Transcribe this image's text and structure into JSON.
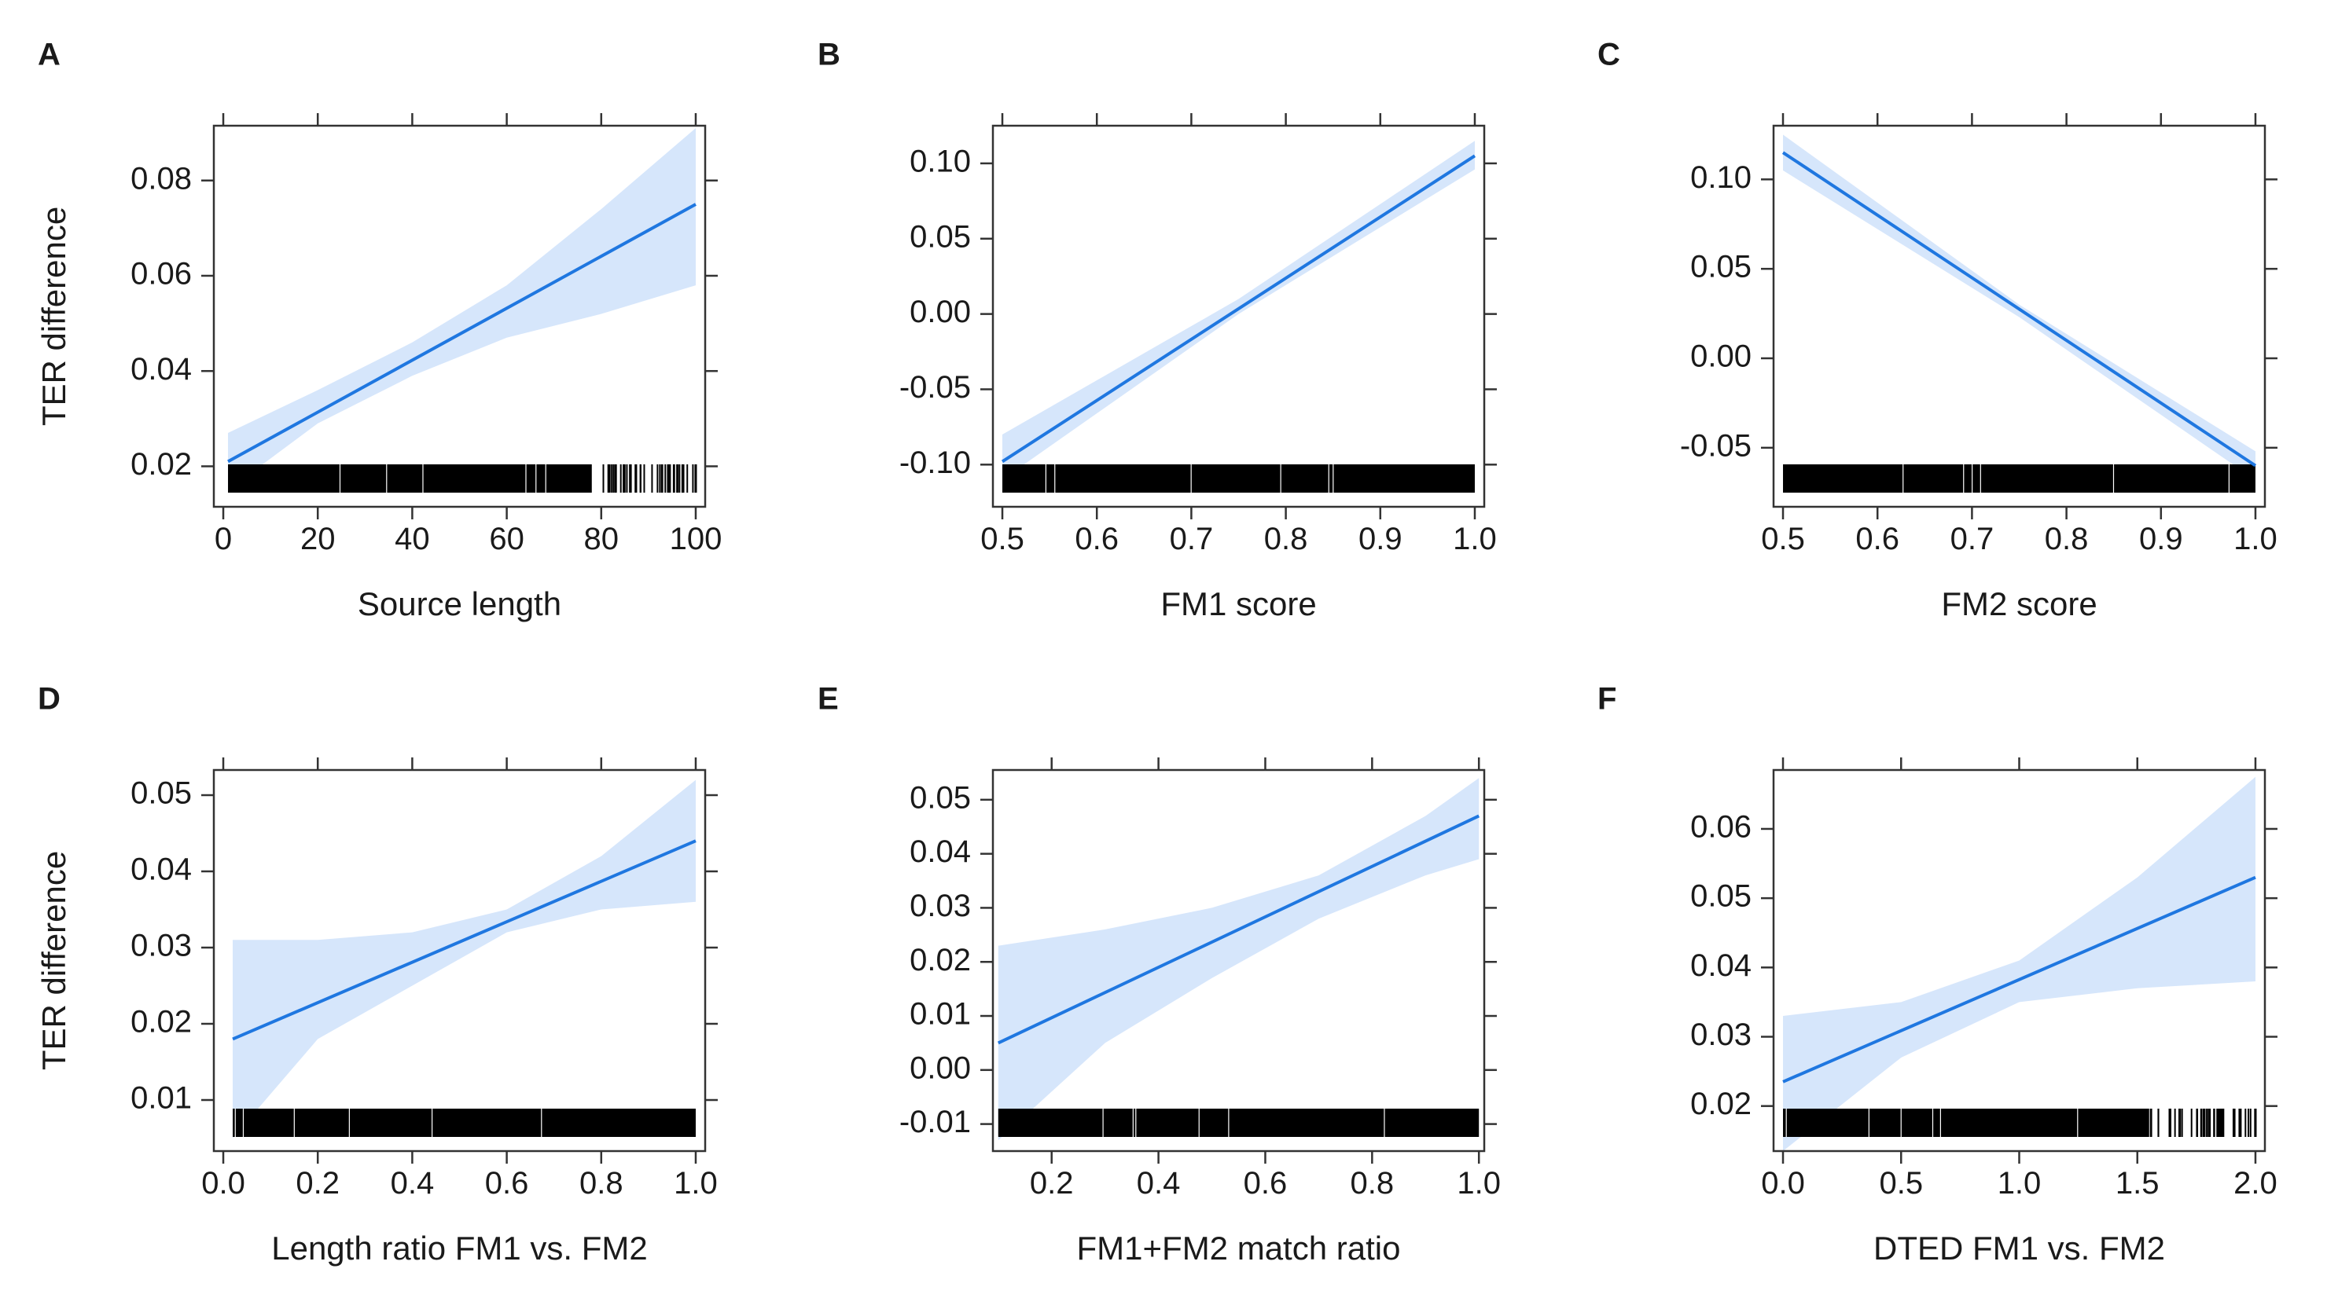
{
  "figure": {
    "colors": {
      "line": "#1f77e0",
      "band": "#d6e6fb",
      "rug": "#000000",
      "frame": "#333333"
    }
  },
  "chart_data": [
    {
      "panel": "A",
      "type": "line",
      "xlabel": "Source length",
      "ylabel": "TER difference",
      "xlim": [
        -2,
        102
      ],
      "ylim": [
        0.0115,
        0.0915
      ],
      "xticks": [
        0,
        20,
        40,
        60,
        80,
        100
      ],
      "xtick_labels": [
        "0",
        "20",
        "40",
        "60",
        "80",
        "100"
      ],
      "yticks": [
        0.02,
        0.04,
        0.06,
        0.08
      ],
      "ytick_labels": [
        "0.02",
        "0.04",
        "0.06",
        "0.08"
      ],
      "series": [
        {
          "x": [
            1,
            100
          ],
          "y": [
            0.021,
            0.075
          ]
        }
      ],
      "band": {
        "x": [
          1,
          20,
          40,
          60,
          80,
          100
        ],
        "lower": [
          0.015,
          0.029,
          0.039,
          0.047,
          0.052,
          0.058
        ],
        "upper": [
          0.027,
          0.036,
          0.046,
          0.058,
          0.074,
          0.091
        ]
      },
      "rug": {
        "from": 1,
        "to": 100,
        "dense_to": 78
      }
    },
    {
      "panel": "B",
      "type": "line",
      "xlabel": "FM1 score",
      "ylabel": "",
      "xlim": [
        0.49,
        1.01
      ],
      "ylim": [
        -0.128,
        0.125
      ],
      "xticks": [
        0.5,
        0.6,
        0.7,
        0.8,
        0.9,
        1.0
      ],
      "xtick_labels": [
        "0.5",
        "0.6",
        "0.7",
        "0.8",
        "0.9",
        "1.0"
      ],
      "yticks": [
        -0.1,
        -0.05,
        0.0,
        0.05,
        0.1
      ],
      "ytick_labels": [
        "-0.10",
        "-0.05",
        "0.00",
        "0.05",
        "0.10"
      ],
      "series": [
        {
          "x": [
            0.5,
            1.0
          ],
          "y": [
            -0.098,
            0.105
          ]
        }
      ],
      "band": {
        "x": [
          0.5,
          0.75,
          1.0
        ],
        "lower": [
          -0.11,
          0.0,
          0.096
        ],
        "upper": [
          -0.08,
          0.01,
          0.115
        ]
      },
      "rug": {
        "from": 0.5,
        "to": 1.0,
        "dense_to": 1.0
      }
    },
    {
      "panel": "C",
      "type": "line",
      "xlabel": "FM2 score",
      "ylabel": "",
      "xlim": [
        0.49,
        1.01
      ],
      "ylim": [
        -0.083,
        0.13
      ],
      "xticks": [
        0.5,
        0.6,
        0.7,
        0.8,
        0.9,
        1.0
      ],
      "xtick_labels": [
        "0.5",
        "0.6",
        "0.7",
        "0.8",
        "0.9",
        "1.0"
      ],
      "yticks": [
        -0.05,
        0.0,
        0.05,
        0.1
      ],
      "ytick_labels": [
        "-0.05",
        "0.00",
        "0.05",
        "0.10"
      ],
      "series": [
        {
          "x": [
            0.5,
            1.0
          ],
          "y": [
            0.115,
            -0.06
          ]
        }
      ],
      "band": {
        "x": [
          0.5,
          0.75,
          1.0
        ],
        "lower": [
          0.105,
          0.023,
          -0.068
        ],
        "upper": [
          0.125,
          0.03,
          -0.052
        ]
      },
      "rug": {
        "from": 0.5,
        "to": 1.0,
        "dense_to": 1.0
      }
    },
    {
      "panel": "D",
      "type": "line",
      "xlabel": "Length ratio FM1 vs. FM2",
      "ylabel": "TER difference",
      "xlim": [
        -0.02,
        1.02
      ],
      "ylim": [
        0.0033,
        0.0533
      ],
      "xticks": [
        0.0,
        0.2,
        0.4,
        0.6,
        0.8,
        1.0
      ],
      "xtick_labels": [
        "0.0",
        "0.2",
        "0.4",
        "0.6",
        "0.8",
        "1.0"
      ],
      "yticks": [
        0.01,
        0.02,
        0.03,
        0.04,
        0.05
      ],
      "ytick_labels": [
        "0.01",
        "0.02",
        "0.03",
        "0.04",
        "0.05"
      ],
      "series": [
        {
          "x": [
            0.02,
            1.0
          ],
          "y": [
            0.018,
            0.044
          ]
        }
      ],
      "band": {
        "x": [
          0.02,
          0.2,
          0.4,
          0.6,
          0.8,
          1.0
        ],
        "lower": [
          0.005,
          0.018,
          0.025,
          0.032,
          0.035,
          0.036
        ],
        "upper": [
          0.031,
          0.031,
          0.032,
          0.035,
          0.042,
          0.052
        ]
      },
      "rug": {
        "from": 0.02,
        "to": 1.0,
        "dense_to": 1.0
      }
    },
    {
      "panel": "E",
      "type": "line",
      "xlabel": "FM1+FM2 match ratio",
      "ylabel": "",
      "xlim": [
        0.09,
        1.01
      ],
      "ylim": [
        -0.015,
        0.0555
      ],
      "xticks": [
        0.2,
        0.4,
        0.6,
        0.8,
        1.0
      ],
      "xtick_labels": [
        "0.2",
        "0.4",
        "0.6",
        "0.8",
        "1.0"
      ],
      "yticks": [
        -0.01,
        0.0,
        0.01,
        0.02,
        0.03,
        0.04,
        0.05
      ],
      "ytick_labels": [
        "-0.01",
        "0.00",
        "0.01",
        "0.02",
        "0.03",
        "0.04",
        "0.05"
      ],
      "series": [
        {
          "x": [
            0.1,
            1.0
          ],
          "y": [
            0.005,
            0.047
          ]
        }
      ],
      "band": {
        "x": [
          0.1,
          0.3,
          0.5,
          0.7,
          0.9,
          1.0
        ],
        "lower": [
          -0.013,
          0.005,
          0.017,
          0.028,
          0.036,
          0.039
        ],
        "upper": [
          0.023,
          0.026,
          0.03,
          0.036,
          0.047,
          0.054
        ]
      },
      "rug": {
        "from": 0.1,
        "to": 1.0,
        "dense_to": 1.0
      }
    },
    {
      "panel": "F",
      "type": "line",
      "xlabel": "DTED FM1 vs. FM2",
      "ylabel": "",
      "xlim": [
        -0.04,
        2.04
      ],
      "ylim": [
        0.0135,
        0.0685
      ],
      "xticks": [
        0.0,
        0.5,
        1.0,
        1.5,
        2.0
      ],
      "xtick_labels": [
        "0.0",
        "0.5",
        "1.0",
        "1.5",
        "2.0"
      ],
      "yticks": [
        0.02,
        0.03,
        0.04,
        0.05,
        0.06
      ],
      "ytick_labels": [
        "0.02",
        "0.03",
        "0.04",
        "0.05",
        "0.06"
      ],
      "series": [
        {
          "x": [
            0.0,
            2.0
          ],
          "y": [
            0.0235,
            0.053
          ]
        }
      ],
      "band": {
        "x": [
          0.0,
          0.5,
          1.0,
          1.5,
          2.0
        ],
        "lower": [
          0.0135,
          0.027,
          0.035,
          0.037,
          0.038
        ],
        "upper": [
          0.033,
          0.035,
          0.041,
          0.053,
          0.0675
        ]
      },
      "rug": {
        "from": 0.0,
        "to": 2.0,
        "dense_to": 1.55
      }
    }
  ]
}
